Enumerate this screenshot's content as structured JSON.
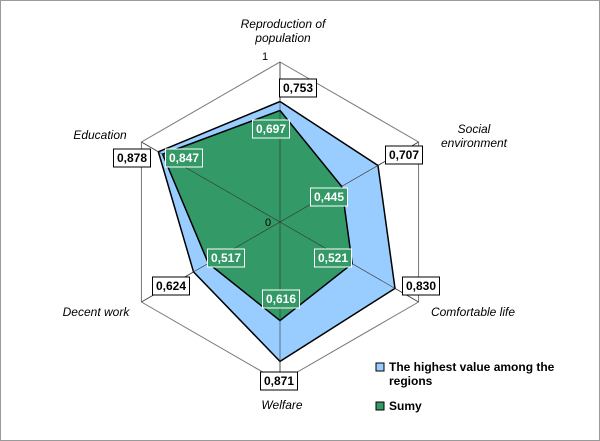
{
  "chart_data": {
    "type": "radar",
    "title": "",
    "axes": [
      "Reproduction of population",
      "Social environment",
      "Comfortable life",
      "Welfare",
      "Decent work",
      "Education"
    ],
    "rlim": [
      0,
      1
    ],
    "tick_labels": [
      "0",
      "1"
    ],
    "series": [
      {
        "name": "The highest value among the regions",
        "values": [
          0.753,
          0.707,
          0.83,
          0.871,
          0.624,
          0.878
        ],
        "labels": [
          "0,753",
          "0,707",
          "0,830",
          "0,871",
          "0,624",
          "0,878"
        ],
        "color": "#99ccff"
      },
      {
        "name": "Sumy",
        "values": [
          0.697,
          0.445,
          0.521,
          0.616,
          0.517,
          0.847
        ],
        "labels": [
          "0,697",
          "0,445",
          "0,521",
          "0,616",
          "0,517",
          "0,847"
        ],
        "color": "#339966"
      }
    ],
    "legend_position": "bottom-right",
    "grid": true
  }
}
